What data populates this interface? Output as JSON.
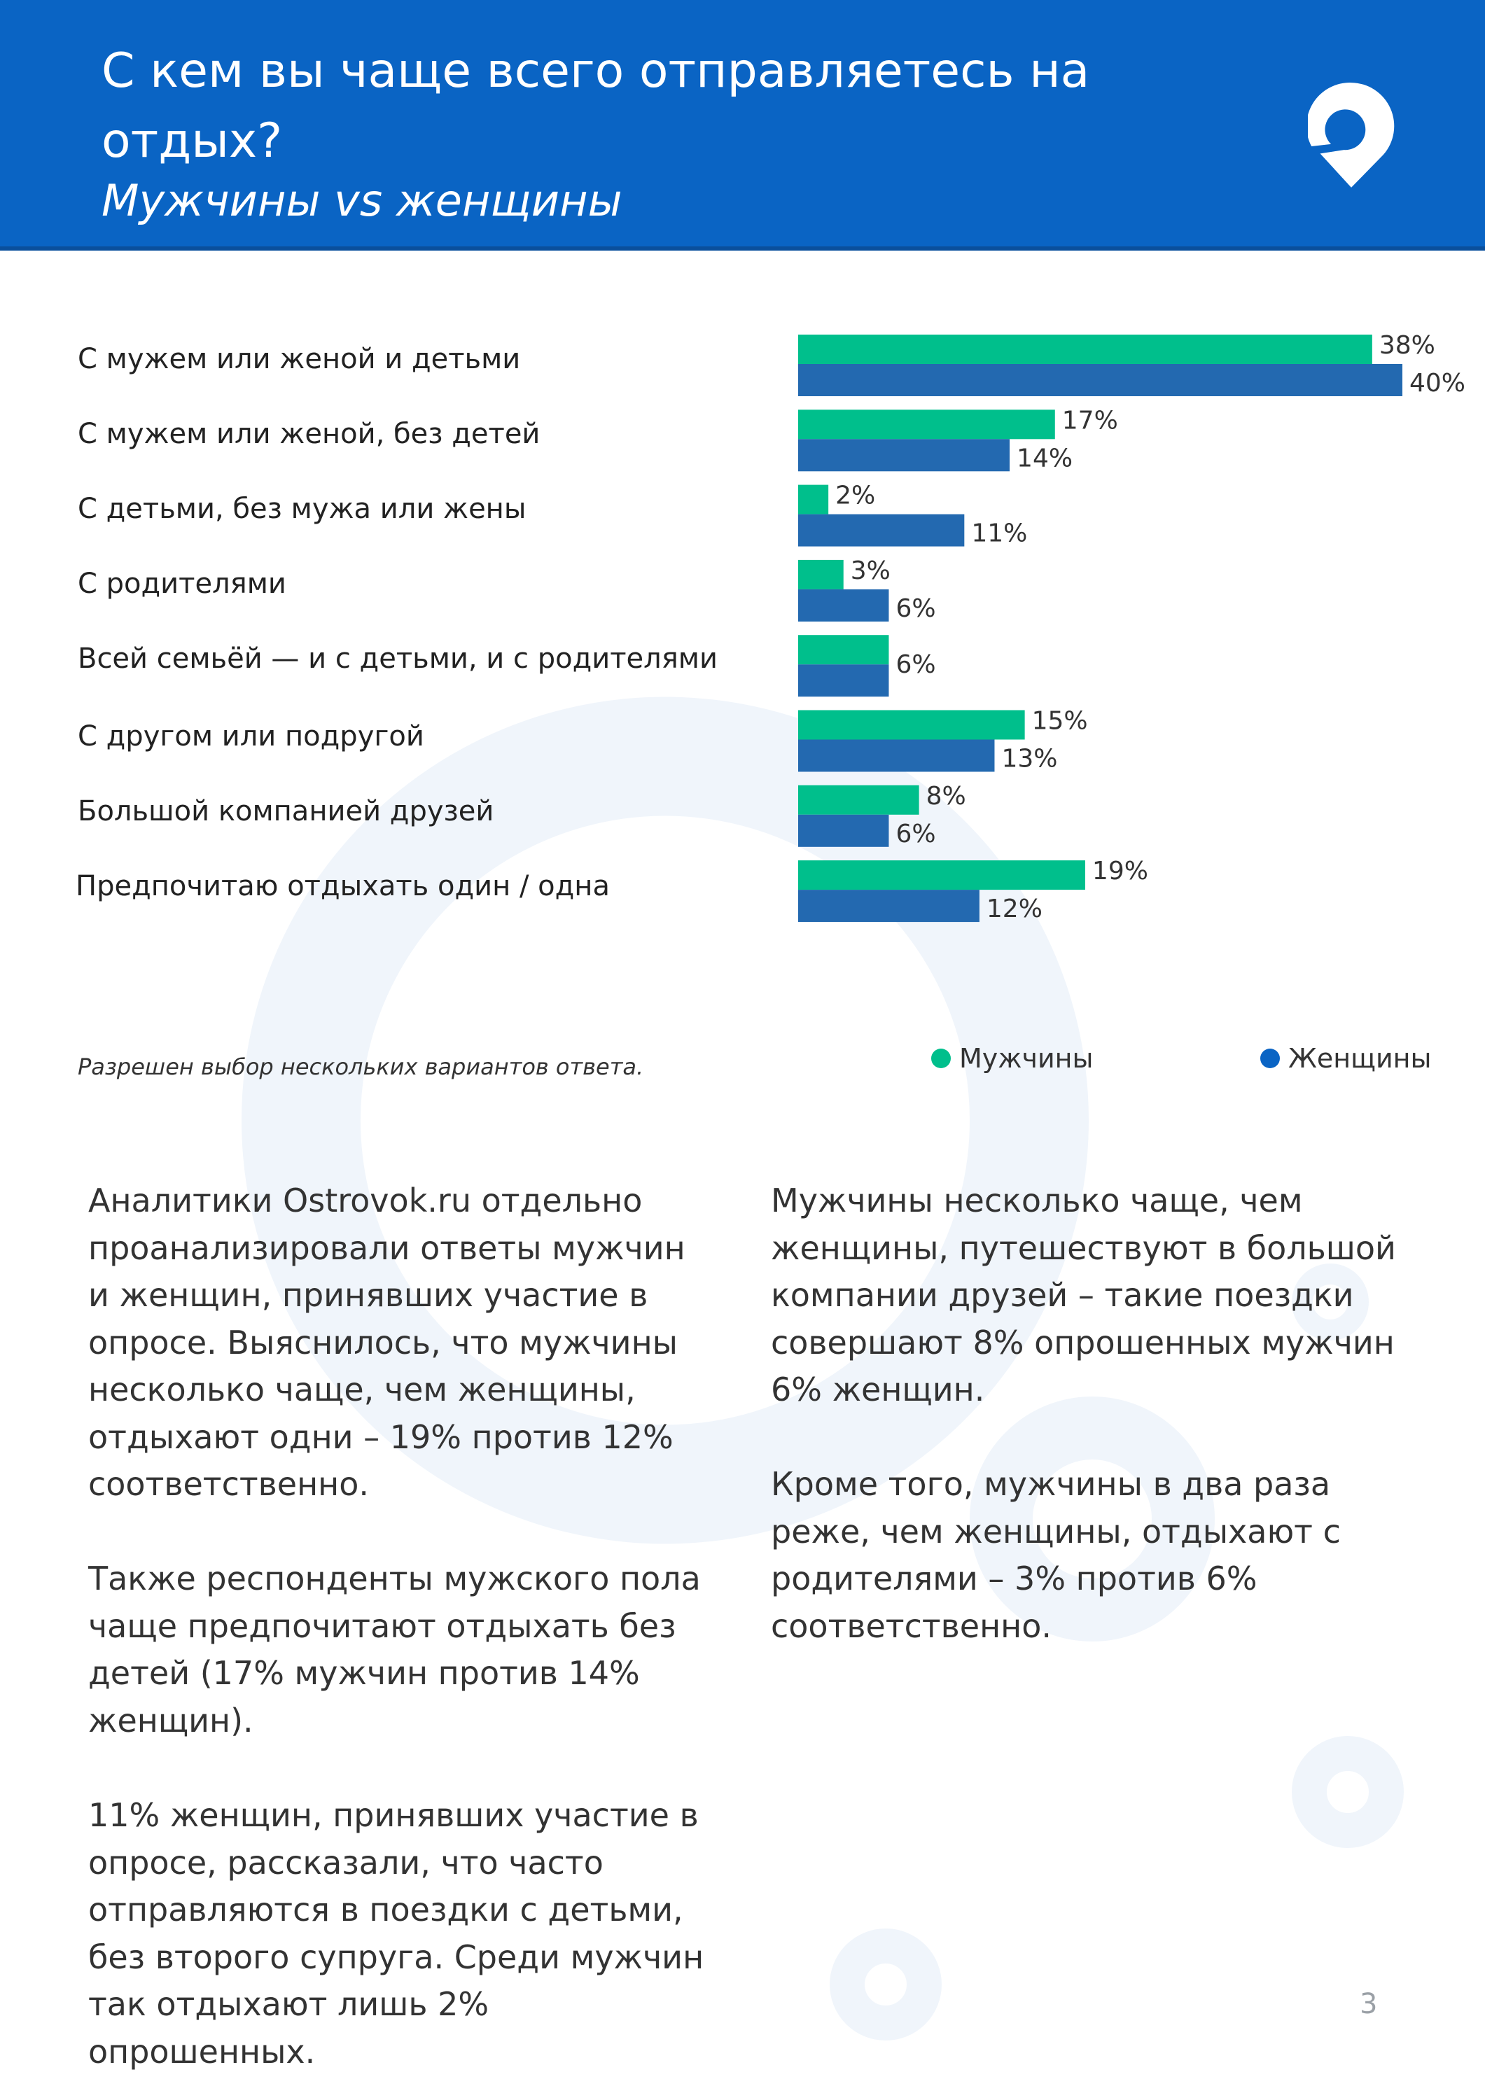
{
  "header": {
    "title": "С кем вы чаще всего отправляетесь на\nотдых?",
    "subtitle": "Мужчины vs женщины"
  },
  "chart_data": {
    "type": "bar",
    "orientation": "horizontal",
    "categories": [
      "С мужем или женой и детьми",
      "С мужем или женой, без детей",
      "С детьми, без мужа или жены",
      "С родителями",
      "Всей семьёй — и с детьми, и с родителями",
      "С другом или подругой",
      "Большой компанией друзей",
      "Предпочитаю отдыхать один / одна"
    ],
    "series": [
      {
        "name": "Мужчины",
        "color": "#00bf8c",
        "values": [
          38,
          17,
          2,
          3,
          6,
          15,
          8,
          19
        ]
      },
      {
        "name": "Женщины",
        "color": "#2369b0",
        "values": [
          40,
          14,
          11,
          6,
          6,
          13,
          6,
          12
        ]
      }
    ],
    "unit": "%",
    "xlim": [
      0,
      40
    ],
    "grid": false,
    "legend": "bottom-right"
  },
  "legend": {
    "men": "Мужчины",
    "women": "Женщины",
    "men_color": "#00bf8c",
    "women_color": "#0a64c4"
  },
  "note": "Разрешен выбор нескольких вариантов ответа.",
  "body": {
    "left": [
      "Аналитики Ostrovok.ru отдельно\nпроанализировали ответы мужчин\nи женщин, принявших участие в\nопросе. Выяснилось, что мужчины\nнесколько чаще, чем женщины,\nотдыхают одни – 19% против 12%\nсоответственно.",
      "Также респонденты мужского пола\nчаще предпочитают отдыхать без\nдетей (17% мужчин против 14%\nженщин).",
      "11% женщин, принявших участие в\nопросе, рассказали, что часто\nотправляются в поездки с детьми,\nбез второго супруга. Среди мужчин\nтак отдыхают лишь 2%\nопрошенных."
    ],
    "right": [
      "Мужчины несколько чаще, чем\nженщины, путешествуют в большой\nкомпании друзей – такие поездки\nсовершают 8% опрошенных мужчин\n6% женщин.",
      "Кроме того, мужчины в два раза\nреже, чем женщины, отдыхают с\nродителями – 3% против 6%\nсоответственно."
    ]
  },
  "page_number": "3",
  "brand_color": "#0a64c4"
}
